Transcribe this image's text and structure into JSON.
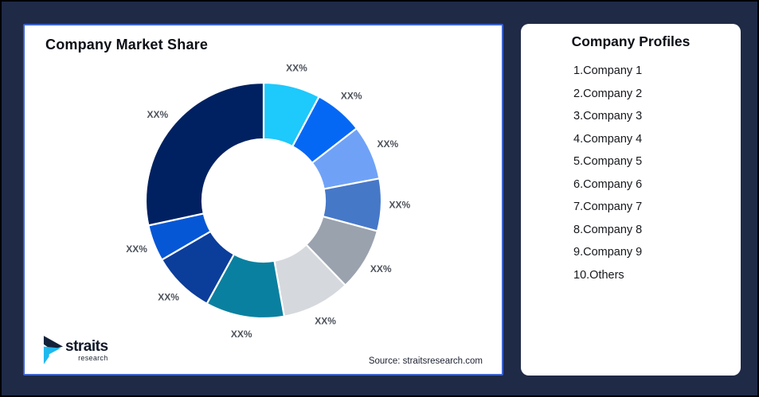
{
  "page": {
    "background_color": "#1f2a47",
    "outer_border_color": "#000000"
  },
  "chart_card": {
    "title": "Company Market Share",
    "source": "Source: straitsresearch.com",
    "border_color": "#3d64cf",
    "logo": {
      "name": "straits",
      "sub": "research",
      "mark_navy": "#132139",
      "mark_cyan": "#1fb9ee"
    }
  },
  "profiles": {
    "title": "Company Profiles",
    "items": [
      "1.Company 1",
      "2.Company 2",
      "3.Company 3",
      "4.Company 4",
      "5.Company 5",
      "6.Company 6",
      "7.Company 7",
      "8.Company 8",
      "9.Company 9",
      "10.Others"
    ]
  },
  "chart_data": {
    "type": "pie",
    "subtype": "donut",
    "title": "Company Market Share",
    "legend": "none",
    "label_text_shown_on_all_segments": "XX%",
    "label_color": "#4d525b",
    "separator_color": "#ffffff",
    "inner_radius_ratio": 0.52,
    "note": "percent values are redacted in the chart as XX%; value_pct_est estimated from arc angles",
    "segments": [
      {
        "name": "Company 1",
        "label": "XX%",
        "value_pct_est": 7.8,
        "color": "#1EC9FB"
      },
      {
        "name": "Company 2",
        "label": "XX%",
        "value_pct_est": 6.7,
        "color": "#0568F5"
      },
      {
        "name": "Company 3",
        "label": "XX%",
        "value_pct_est": 7.5,
        "color": "#6FA2F7"
      },
      {
        "name": "Company 4",
        "label": "XX%",
        "value_pct_est": 7.2,
        "color": "#4678C8"
      },
      {
        "name": "Company 5",
        "label": "XX%",
        "value_pct_est": 8.6,
        "color": "#9AA2AE"
      },
      {
        "name": "Company 6",
        "label": "XX%",
        "value_pct_est": 9.4,
        "color": "#D5D8DD"
      },
      {
        "name": "Company 7",
        "label": "XX%",
        "value_pct_est": 10.8,
        "color": "#0A80A0"
      },
      {
        "name": "Company 8",
        "label": "XX%",
        "value_pct_est": 8.6,
        "color": "#0B3D9B"
      },
      {
        "name": "Company 9",
        "label": "XX%",
        "value_pct_est": 5.0,
        "color": "#0657D5"
      },
      {
        "name": "Others",
        "label": "XX%",
        "value_pct_est": 28.4,
        "color": "#002161"
      }
    ]
  }
}
